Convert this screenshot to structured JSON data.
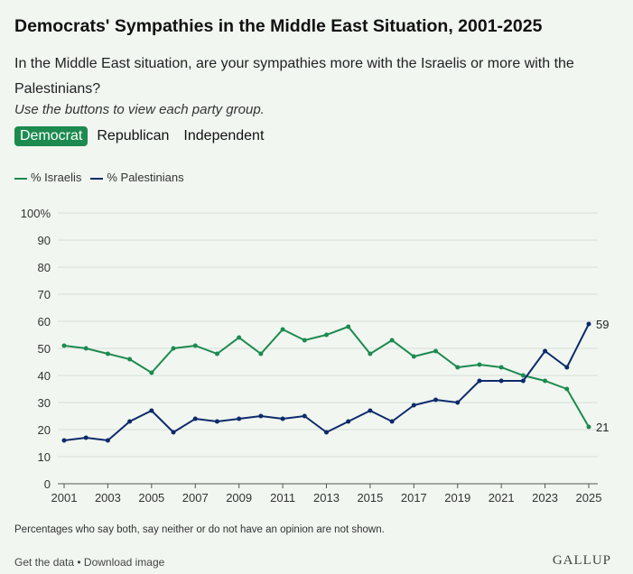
{
  "title": "Democrats' Sympathies in the Middle East Situation, 2001-2025",
  "question": "In the Middle East situation, are your sympathies more with the Israelis or more with the Palestinians?",
  "instruction": "Use the buttons to view each party group.",
  "buttons": [
    "Democrat",
    "Republican",
    "Independent"
  ],
  "footnote": "Percentages who say both, say neither or do not have an opinion are not shown.",
  "links": {
    "get_data": "Get the data",
    "sep": " • ",
    "download": "Download image"
  },
  "logo": "GALLUP",
  "chart_data": {
    "type": "line",
    "x": [
      2001,
      2002,
      2003,
      2004,
      2005,
      2006,
      2007,
      2008,
      2009,
      2010,
      2011,
      2012,
      2013,
      2014,
      2015,
      2016,
      2017,
      2018,
      2019,
      2020,
      2021,
      2022,
      2023,
      2024,
      2025
    ],
    "series": [
      {
        "name": "% Israelis",
        "color": "#1d8a4f",
        "values": [
          51,
          50,
          48,
          46,
          41,
          50,
          51,
          48,
          54,
          48,
          57,
          53,
          55,
          58,
          48,
          53,
          47,
          49,
          43,
          44,
          43,
          40,
          38,
          35,
          21
        ]
      },
      {
        "name": "% Palestinians",
        "color": "#0d2a6b",
        "values": [
          16,
          17,
          16,
          23,
          27,
          19,
          24,
          23,
          24,
          25,
          24,
          25,
          19,
          23,
          27,
          23,
          29,
          31,
          30,
          38,
          38,
          38,
          49,
          43,
          59
        ]
      }
    ],
    "end_labels": [
      "21",
      "59"
    ],
    "y_ticks": [
      "0",
      "10",
      "20",
      "30",
      "40",
      "50",
      "60",
      "70",
      "80",
      "90",
      "100%"
    ],
    "x_ticks": [
      "2001",
      "2003",
      "2005",
      "2007",
      "2009",
      "2011",
      "2013",
      "2015",
      "2017",
      "2019",
      "2021",
      "2023",
      "2025"
    ],
    "ylim": [
      0,
      100
    ],
    "legend": "top-left",
    "grid": true
  }
}
